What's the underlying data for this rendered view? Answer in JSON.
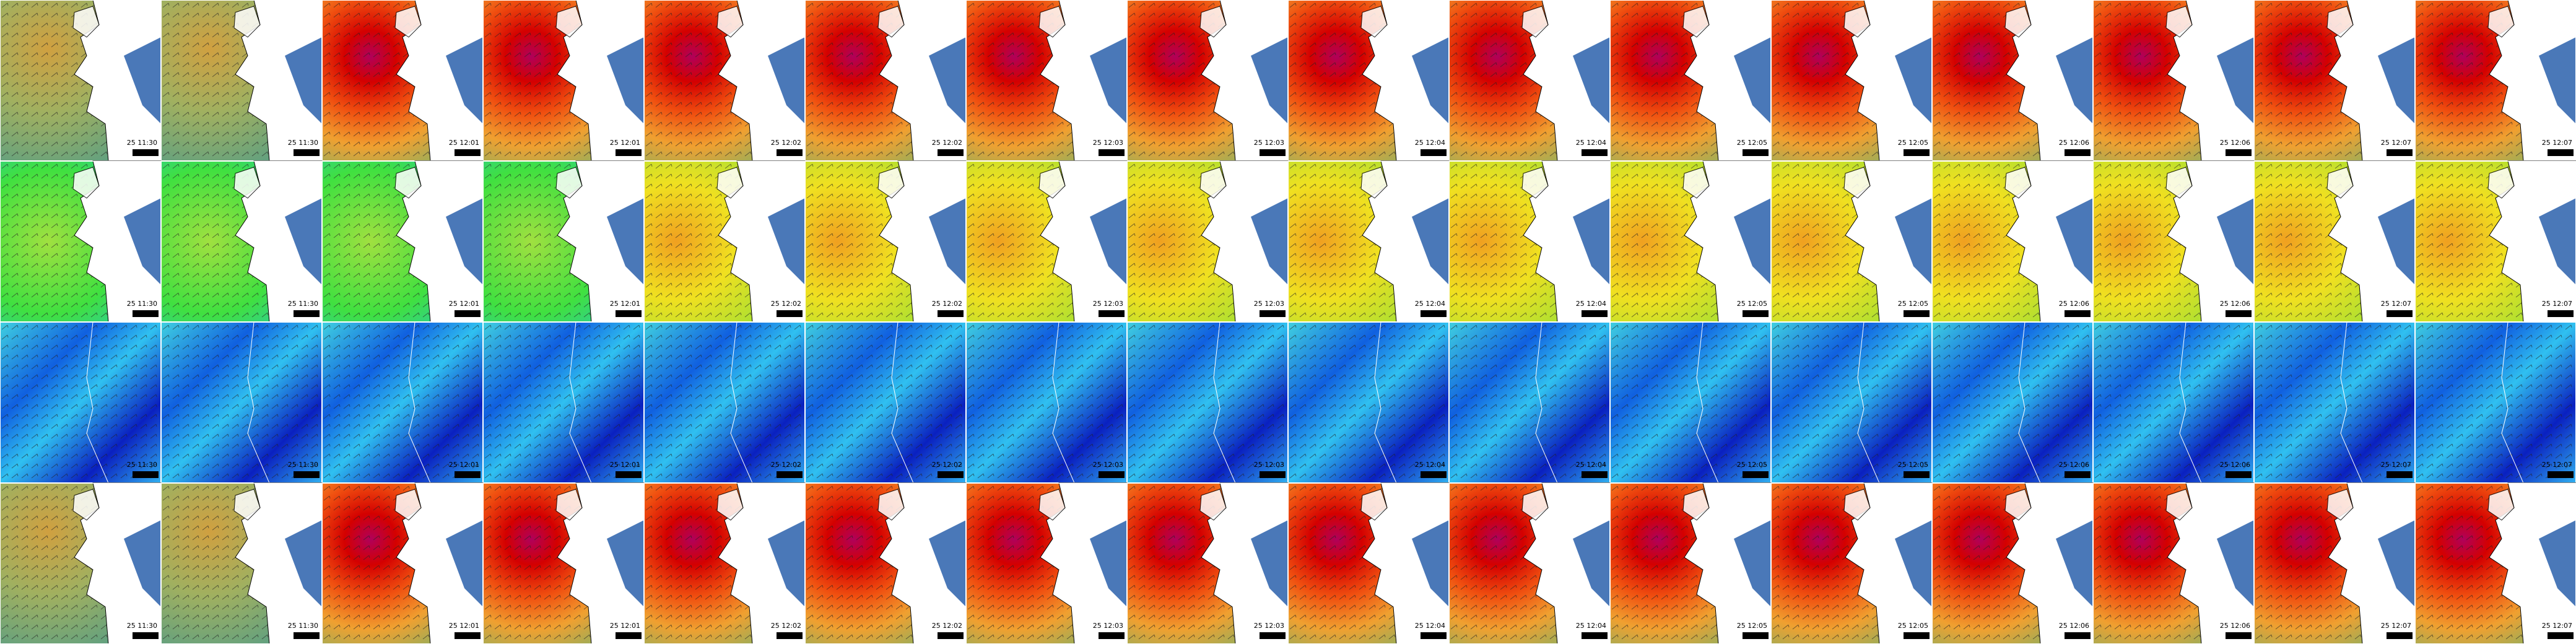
{
  "grid": {
    "column_labels": [
      "25 11:30",
      "25 11:30",
      "25 12:01",
      "25 12:01",
      "25 12:02",
      "25 12:02",
      "25 12:03",
      "25 12:03",
      "25 12:04",
      "25 12:04",
      "25 12:05",
      "25 12:05",
      "25 12:06",
      "25 12:06",
      "25 12:07",
      "25 12:07"
    ]
  }
}
